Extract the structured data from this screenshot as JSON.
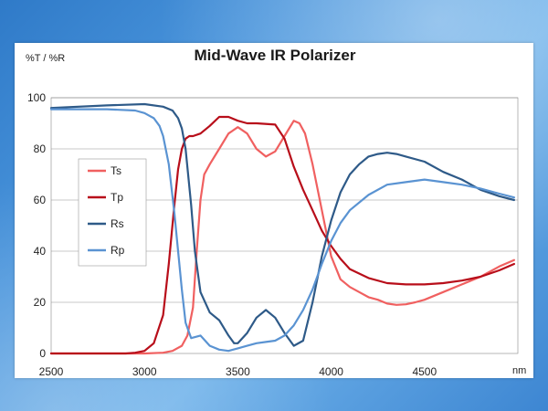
{
  "chart_data": {
    "type": "line",
    "title": "Mid-Wave IR Polarizer",
    "ylabel": "%T / %R",
    "xlabel": "nm",
    "xlim": [
      2500,
      5000
    ],
    "ylim": [
      0,
      100
    ],
    "x_ticks": [
      2500,
      3000,
      3500,
      4000,
      4500
    ],
    "y_ticks": [
      0,
      20,
      40,
      60,
      80,
      100
    ],
    "grid": "horizontal",
    "legend": "left-middle",
    "series": [
      {
        "name": "Ts",
        "color": "#f06060",
        "x": [
          2500,
          3000,
          3100,
          3150,
          3200,
          3230,
          3260,
          3280,
          3300,
          3320,
          3350,
          3400,
          3450,
          3500,
          3550,
          3600,
          3650,
          3700,
          3750,
          3800,
          3830,
          3860,
          3900,
          3950,
          4000,
          4050,
          4100,
          4150,
          4200,
          4250,
          4300,
          4350,
          4400,
          4450,
          4500,
          4600,
          4700,
          4800,
          4900,
          4980
        ],
        "y": [
          0,
          0,
          0.3,
          1,
          3,
          7,
          18,
          40,
          60,
          70,
          74,
          80,
          86,
          88.5,
          86,
          80,
          77,
          79,
          85,
          91,
          90,
          86,
          74,
          56,
          38,
          29,
          26,
          24,
          22,
          21,
          19.5,
          19,
          19.2,
          20,
          21,
          24,
          27,
          30,
          34,
          36.5
        ]
      },
      {
        "name": "Tp",
        "color": "#b80e1a",
        "x": [
          2500,
          2900,
          2950,
          3000,
          3050,
          3100,
          3130,
          3160,
          3180,
          3200,
          3220,
          3240,
          3260,
          3300,
          3350,
          3400,
          3450,
          3500,
          3550,
          3600,
          3700,
          3750,
          3800,
          3850,
          3900,
          3950,
          4000,
          4050,
          4100,
          4200,
          4300,
          4400,
          4500,
          4600,
          4700,
          4800,
          4900,
          4980
        ],
        "y": [
          0,
          0,
          0.3,
          1,
          4,
          15,
          35,
          58,
          72,
          80,
          84,
          85,
          85,
          86,
          89,
          92.5,
          92.5,
          91,
          90,
          90,
          89.5,
          84,
          73,
          64,
          56,
          48,
          42,
          37,
          33,
          29.5,
          27.5,
          27,
          27,
          27.5,
          28.5,
          30,
          32.5,
          35
        ]
      },
      {
        "name": "Rs",
        "color": "#2e5a88",
        "x": [
          2500,
          2800,
          3000,
          3100,
          3150,
          3180,
          3200,
          3220,
          3250,
          3270,
          3300,
          3350,
          3400,
          3450,
          3480,
          3500,
          3550,
          3600,
          3650,
          3700,
          3750,
          3800,
          3850,
          3900,
          3950,
          4000,
          4050,
          4100,
          4150,
          4200,
          4250,
          4300,
          4350,
          4400,
          4500,
          4600,
          4700,
          4800,
          4900,
          4980
        ],
        "y": [
          96,
          97,
          97.5,
          96.5,
          95,
          92,
          88,
          80,
          58,
          40,
          24,
          16,
          13,
          7,
          4,
          4,
          8,
          14,
          17,
          14,
          8,
          3,
          5,
          20,
          38,
          52,
          63,
          70,
          74,
          77,
          78,
          78.5,
          78,
          77,
          75,
          71,
          68,
          64,
          61.5,
          60
        ]
      },
      {
        "name": "Rp",
        "color": "#5a93d2",
        "x": [
          2500,
          2800,
          2950,
          3000,
          3050,
          3080,
          3100,
          3130,
          3160,
          3180,
          3200,
          3220,
          3250,
          3300,
          3350,
          3400,
          3450,
          3500,
          3550,
          3600,
          3650,
          3700,
          3750,
          3800,
          3850,
          3900,
          3950,
          4000,
          4050,
          4100,
          4200,
          4300,
          4400,
          4500,
          4600,
          4700,
          4800,
          4900,
          4980
        ],
        "y": [
          95.5,
          95.5,
          95,
          94,
          92,
          89,
          85,
          74,
          55,
          40,
          25,
          12,
          6,
          7,
          3,
          1.5,
          1,
          2,
          3,
          4,
          4.5,
          5,
          7,
          11,
          17,
          25,
          35,
          44,
          51,
          56,
          62,
          66,
          67,
          68,
          67,
          66,
          64.5,
          62.5,
          61
        ]
      }
    ]
  }
}
